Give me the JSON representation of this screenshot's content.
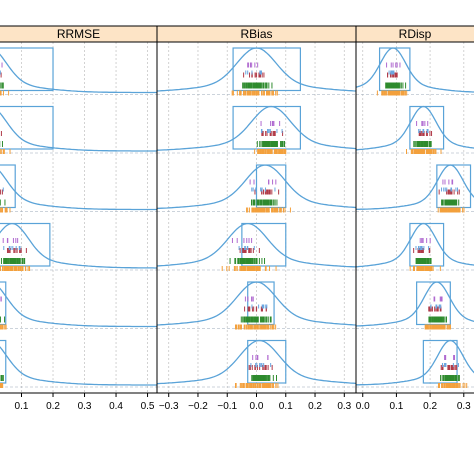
{
  "chart_data": {
    "type": "lattice-density-rug",
    "panels": [
      {
        "title": "RRMSE",
        "ticks": [
          "0.1",
          "0.2",
          "0.3",
          "0.4",
          "0.5"
        ],
        "tick_values": [
          0.1,
          0.2,
          0.3,
          0.4,
          0.5
        ],
        "xlim": [
          0.0,
          0.53
        ]
      },
      {
        "title": "RBias",
        "ticks": [
          "−0.3",
          "−0.2",
          "−0.1",
          "0.0",
          "0.1",
          "0.2",
          "0.3"
        ],
        "tick_values": [
          -0.3,
          -0.2,
          -0.1,
          0.0,
          0.1,
          0.2,
          0.3
        ],
        "xlim": [
          -0.34,
          0.34
        ]
      },
      {
        "title": "RDisp",
        "ticks": [
          "0.0",
          "0.1",
          "0.2",
          "0.3"
        ],
        "tick_values": [
          0.0,
          0.1,
          0.2,
          0.3
        ],
        "xlim": [
          -0.02,
          0.36
        ]
      }
    ],
    "rows": 6,
    "boxes": [
      [
        [
          0.0,
          0.2
        ],
        [
          0.0,
          0.2
        ],
        [
          0.0,
          0.08
        ],
        [
          0.0,
          0.19
        ],
        [
          0.0,
          0.05
        ],
        [
          0.0,
          0.05
        ]
      ],
      [
        [
          -0.08,
          0.15
        ],
        [
          -0.08,
          0.15
        ],
        [
          0.0,
          0.1
        ],
        [
          -0.05,
          0.1
        ],
        [
          -0.03,
          0.06
        ],
        [
          -0.03,
          0.1
        ]
      ],
      [
        [
          0.05,
          0.14
        ],
        [
          0.14,
          0.24
        ],
        [
          0.22,
          0.32
        ],
        [
          0.14,
          0.24
        ],
        [
          0.16,
          0.26
        ],
        [
          0.18,
          0.28
        ]
      ]
    ],
    "peaks": [
      [
        0.0,
        0.0,
        0.0,
        0.07,
        0.0,
        0.0
      ],
      [
        0.0,
        0.05,
        0.03,
        -0.03,
        0.0,
        0.01
      ],
      [
        0.09,
        0.18,
        0.26,
        0.18,
        0.22,
        0.26
      ]
    ],
    "colors": {
      "density": "#5aa3d8",
      "box": "#5aa3d8",
      "rug_green": "#2e8b2e",
      "rug_orange": "#f3a03c",
      "rug_red": "#b03a48",
      "rug_purple": "#b06ad0",
      "rug_blue": "#6aa6e0",
      "strip": "#fde4c6"
    }
  }
}
